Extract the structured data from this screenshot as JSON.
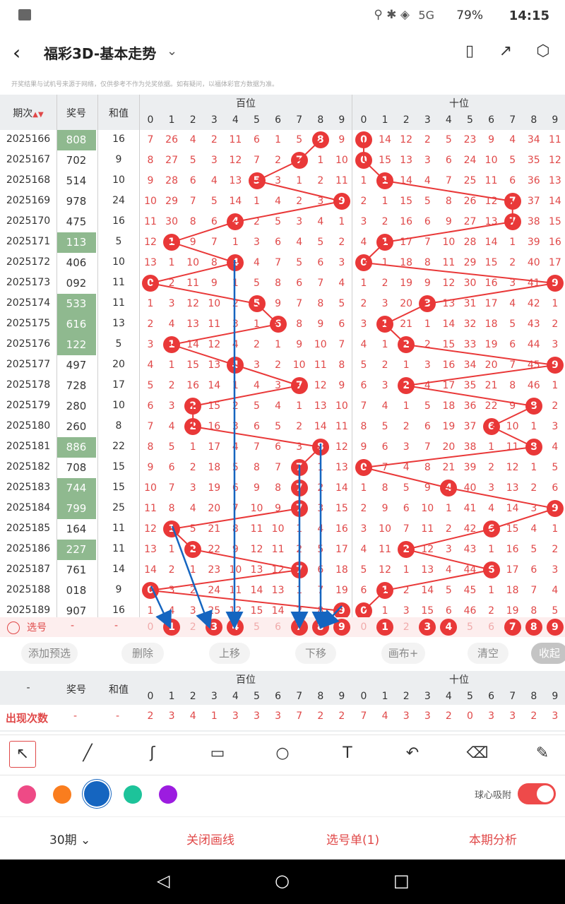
{
  "status": {
    "time": "14:15",
    "battery": "79%",
    "network": "5G"
  },
  "app": {
    "title": "福彩3D-基本走势"
  },
  "notice": "开奖结果与试机号来源于网络，仅供参考不作为兑奖依据。如有疑问，以福体彩官方数据为准。",
  "table": {
    "col_issue": "期次",
    "col_prize": "奖号",
    "col_sum": "和值",
    "group_hundreds": "百位",
    "group_tens": "十位",
    "digits": [
      "0",
      "1",
      "2",
      "3",
      "4",
      "5",
      "6",
      "7",
      "8",
      "9"
    ],
    "rows": [
      {
        "issue": "2025166",
        "prize": "808",
        "sum": "16",
        "hl": true,
        "h": [
          "7",
          "26",
          "4",
          "2",
          "11",
          "6",
          "1",
          "5",
          "8",
          "9"
        ],
        "t": [
          "0",
          "14",
          "12",
          "2",
          "5",
          "23",
          "9",
          "4",
          "34",
          "11"
        ]
      },
      {
        "issue": "2025167",
        "prize": "702",
        "sum": "9",
        "hl": false,
        "h": [
          "8",
          "27",
          "5",
          "3",
          "12",
          "7",
          "2",
          "7",
          "1",
          "10"
        ],
        "t": [
          "0",
          "15",
          "13",
          "3",
          "6",
          "24",
          "10",
          "5",
          "35",
          "12"
        ]
      },
      {
        "issue": "2025168",
        "prize": "514",
        "sum": "10",
        "hl": false,
        "h": [
          "9",
          "28",
          "6",
          "4",
          "13",
          "5",
          "3",
          "1",
          "2",
          "11"
        ],
        "t": [
          "1",
          "1",
          "14",
          "4",
          "7",
          "25",
          "11",
          "6",
          "36",
          "13"
        ]
      },
      {
        "issue": "2025169",
        "prize": "978",
        "sum": "24",
        "hl": false,
        "h": [
          "10",
          "29",
          "7",
          "5",
          "14",
          "1",
          "4",
          "2",
          "3",
          "9"
        ],
        "t": [
          "2",
          "1",
          "15",
          "5",
          "8",
          "26",
          "12",
          "7",
          "37",
          "14"
        ]
      },
      {
        "issue": "2025170",
        "prize": "475",
        "sum": "16",
        "hl": false,
        "h": [
          "11",
          "30",
          "8",
          "6",
          "4",
          "2",
          "5",
          "3",
          "4",
          "1"
        ],
        "t": [
          "3",
          "2",
          "16",
          "6",
          "9",
          "27",
          "13",
          "7",
          "38",
          "15"
        ]
      },
      {
        "issue": "2025171",
        "prize": "113",
        "sum": "5",
        "hl": true,
        "h": [
          "12",
          "1",
          "9",
          "7",
          "1",
          "3",
          "6",
          "4",
          "5",
          "2"
        ],
        "t": [
          "4",
          "1",
          "17",
          "7",
          "10",
          "28",
          "14",
          "1",
          "39",
          "16"
        ]
      },
      {
        "issue": "2025172",
        "prize": "406",
        "sum": "10",
        "hl": false,
        "h": [
          "13",
          "1",
          "10",
          "8",
          "4",
          "4",
          "7",
          "5",
          "6",
          "3"
        ],
        "t": [
          "0",
          "1",
          "18",
          "8",
          "11",
          "29",
          "15",
          "2",
          "40",
          "17"
        ]
      },
      {
        "issue": "2025173",
        "prize": "092",
        "sum": "11",
        "hl": false,
        "h": [
          "0",
          "2",
          "11",
          "9",
          "1",
          "5",
          "8",
          "6",
          "7",
          "4"
        ],
        "t": [
          "1",
          "2",
          "19",
          "9",
          "12",
          "30",
          "16",
          "3",
          "41",
          "9"
        ]
      },
      {
        "issue": "2025174",
        "prize": "533",
        "sum": "11",
        "hl": true,
        "h": [
          "1",
          "3",
          "12",
          "10",
          "2",
          "5",
          "9",
          "7",
          "8",
          "5"
        ],
        "t": [
          "2",
          "3",
          "20",
          "3",
          "13",
          "31",
          "17",
          "4",
          "42",
          "1"
        ]
      },
      {
        "issue": "2025175",
        "prize": "616",
        "sum": "13",
        "hl": true,
        "h": [
          "2",
          "4",
          "13",
          "11",
          "3",
          "1",
          "6",
          "8",
          "9",
          "6"
        ],
        "t": [
          "3",
          "1",
          "21",
          "1",
          "14",
          "32",
          "18",
          "5",
          "43",
          "2"
        ]
      },
      {
        "issue": "2025176",
        "prize": "122",
        "sum": "5",
        "hl": true,
        "h": [
          "3",
          "1",
          "14",
          "12",
          "4",
          "2",
          "1",
          "9",
          "10",
          "7"
        ],
        "t": [
          "4",
          "1",
          "2",
          "2",
          "15",
          "33",
          "19",
          "6",
          "44",
          "3"
        ]
      },
      {
        "issue": "2025177",
        "prize": "497",
        "sum": "20",
        "hl": false,
        "h": [
          "4",
          "1",
          "15",
          "13",
          "4",
          "3",
          "2",
          "10",
          "11",
          "8"
        ],
        "t": [
          "5",
          "2",
          "1",
          "3",
          "16",
          "34",
          "20",
          "7",
          "45",
          "9"
        ]
      },
      {
        "issue": "2025178",
        "prize": "728",
        "sum": "17",
        "hl": false,
        "h": [
          "5",
          "2",
          "16",
          "14",
          "1",
          "4",
          "3",
          "7",
          "12",
          "9"
        ],
        "t": [
          "6",
          "3",
          "2",
          "4",
          "17",
          "35",
          "21",
          "8",
          "46",
          "1"
        ]
      },
      {
        "issue": "2025179",
        "prize": "280",
        "sum": "10",
        "hl": false,
        "h": [
          "6",
          "3",
          "2",
          "15",
          "2",
          "5",
          "4",
          "1",
          "13",
          "10"
        ],
        "t": [
          "7",
          "4",
          "1",
          "5",
          "18",
          "36",
          "22",
          "9",
          "8",
          "2"
        ]
      },
      {
        "issue": "2025180",
        "prize": "260",
        "sum": "8",
        "hl": false,
        "h": [
          "7",
          "4",
          "2",
          "16",
          "3",
          "6",
          "5",
          "2",
          "14",
          "11"
        ],
        "t": [
          "8",
          "5",
          "2",
          "6",
          "19",
          "37",
          "6",
          "10",
          "1",
          "3"
        ]
      },
      {
        "issue": "2025181",
        "prize": "886",
        "sum": "22",
        "hl": true,
        "h": [
          "8",
          "5",
          "1",
          "17",
          "4",
          "7",
          "6",
          "3",
          "8",
          "12"
        ],
        "t": [
          "9",
          "6",
          "3",
          "7",
          "20",
          "38",
          "1",
          "11",
          "8",
          "4"
        ]
      },
      {
        "issue": "2025182",
        "prize": "708",
        "sum": "15",
        "hl": false,
        "h": [
          "9",
          "6",
          "2",
          "18",
          "5",
          "8",
          "7",
          "7",
          "1",
          "13"
        ],
        "t": [
          "0",
          "7",
          "4",
          "8",
          "21",
          "39",
          "2",
          "12",
          "1",
          "5"
        ]
      },
      {
        "issue": "2025183",
        "prize": "744",
        "sum": "15",
        "hl": true,
        "h": [
          "10",
          "7",
          "3",
          "19",
          "6",
          "9",
          "8",
          "7",
          "2",
          "14"
        ],
        "t": [
          "1",
          "8",
          "5",
          "9",
          "4",
          "40",
          "3",
          "13",
          "2",
          "6"
        ]
      },
      {
        "issue": "2025184",
        "prize": "799",
        "sum": "25",
        "hl": true,
        "h": [
          "11",
          "8",
          "4",
          "20",
          "7",
          "10",
          "9",
          "7",
          "3",
          "15"
        ],
        "t": [
          "2",
          "9",
          "6",
          "10",
          "1",
          "41",
          "4",
          "14",
          "3",
          "9"
        ]
      },
      {
        "issue": "2025185",
        "prize": "164",
        "sum": "11",
        "hl": false,
        "h": [
          "12",
          "1",
          "5",
          "21",
          "8",
          "11",
          "10",
          "1",
          "4",
          "16"
        ],
        "t": [
          "3",
          "10",
          "7",
          "11",
          "2",
          "42",
          "6",
          "15",
          "4",
          "1"
        ]
      },
      {
        "issue": "2025186",
        "prize": "227",
        "sum": "11",
        "hl": true,
        "h": [
          "13",
          "1",
          "2",
          "22",
          "9",
          "12",
          "11",
          "2",
          "5",
          "17"
        ],
        "t": [
          "4",
          "11",
          "2",
          "12",
          "3",
          "43",
          "1",
          "16",
          "5",
          "2"
        ]
      },
      {
        "issue": "2025187",
        "prize": "761",
        "sum": "14",
        "hl": false,
        "h": [
          "14",
          "2",
          "1",
          "23",
          "10",
          "13",
          "12",
          "7",
          "6",
          "18"
        ],
        "t": [
          "5",
          "12",
          "1",
          "13",
          "4",
          "44",
          "6",
          "17",
          "6",
          "3"
        ]
      },
      {
        "issue": "2025188",
        "prize": "018",
        "sum": "9",
        "hl": false,
        "h": [
          "0",
          "3",
          "2",
          "24",
          "11",
          "14",
          "13",
          "1",
          "7",
          "19"
        ],
        "t": [
          "6",
          "1",
          "2",
          "14",
          "5",
          "45",
          "1",
          "18",
          "7",
          "4"
        ]
      },
      {
        "issue": "2025189",
        "prize": "907",
        "sum": "16",
        "hl": false,
        "h": [
          "1",
          "4",
          "3",
          "25",
          "12",
          "15",
          "14",
          "2",
          "8",
          "9"
        ],
        "t": [
          "0",
          "1",
          "3",
          "15",
          "6",
          "46",
          "2",
          "19",
          "8",
          "5"
        ]
      }
    ],
    "select_label": "选号",
    "select_dash": "-",
    "selected_h": [
      "1",
      "3",
      "4",
      "7",
      "8",
      "9"
    ],
    "selected_t": [
      "1",
      "3",
      "4",
      "7",
      "8",
      "9"
    ]
  },
  "actions": [
    "添加预选",
    "删除",
    "上移",
    "下移",
    "画布+",
    "清空",
    "收起"
  ],
  "stats": {
    "dash": "-",
    "col_prize": "奖号",
    "col_sum": "和值",
    "row_label": "出现次数",
    "row_dash": "-",
    "h": [
      "2",
      "3",
      "4",
      "1",
      "3",
      "3",
      "3",
      "7",
      "2",
      "2"
    ],
    "t": [
      "7",
      "4",
      "3",
      "3",
      "2",
      "0",
      "3",
      "3",
      "2",
      "3"
    ]
  },
  "draw": {
    "colors": [
      "#ee4a86",
      "#fa7d1e",
      "#1565c0",
      "#1dc39a",
      "#9c1ce0"
    ],
    "snap_label": "球心吸附"
  },
  "bottom": {
    "period": "30期",
    "close_lines": "关闭画线",
    "selection": "选号单(1)",
    "analysis": "本期分析"
  }
}
